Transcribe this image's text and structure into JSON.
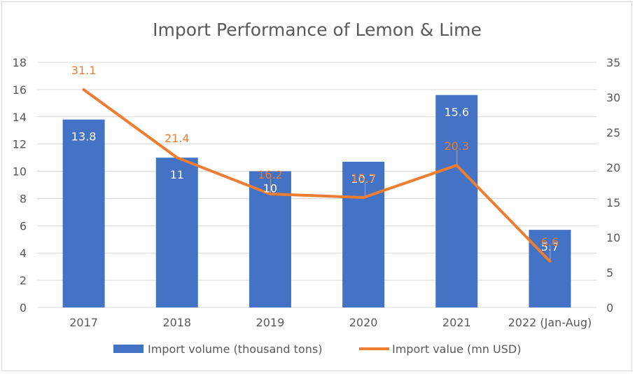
{
  "chart_data": {
    "type": "bar",
    "title": "Import Performance of Lemon & Lime",
    "categories": [
      "2017",
      "2018",
      "2019",
      "2020",
      "2021",
      "2022 (Jan-Aug)"
    ],
    "series": [
      {
        "name": "Import volume (thousand tons)",
        "type": "bar",
        "axis": "left",
        "color": "#4472c4",
        "values": [
          13.8,
          11,
          10,
          10.7,
          15.6,
          5.7
        ],
        "labels": [
          "13.8",
          "11",
          "10",
          "10.7",
          "15.6",
          "5.7"
        ]
      },
      {
        "name": "Import value (mn USD)",
        "type": "line",
        "axis": "right",
        "color": "#ed7d31",
        "values": [
          31.1,
          21.4,
          16.2,
          15.7,
          20.3,
          6.6
        ],
        "labels": [
          "31.1",
          "21.4",
          "16.2",
          "15.7",
          "20.3",
          "6.6"
        ]
      }
    ],
    "y_left": {
      "min": 0,
      "max": 18,
      "ticks": [
        "0",
        "2",
        "4",
        "6",
        "8",
        "10",
        "12",
        "14",
        "16",
        "18"
      ]
    },
    "y_right": {
      "min": 0,
      "max": 35,
      "ticks": [
        "0",
        "5",
        "10",
        "15",
        "20",
        "25",
        "30",
        "35"
      ]
    },
    "grid": true,
    "legend_position": "bottom"
  }
}
